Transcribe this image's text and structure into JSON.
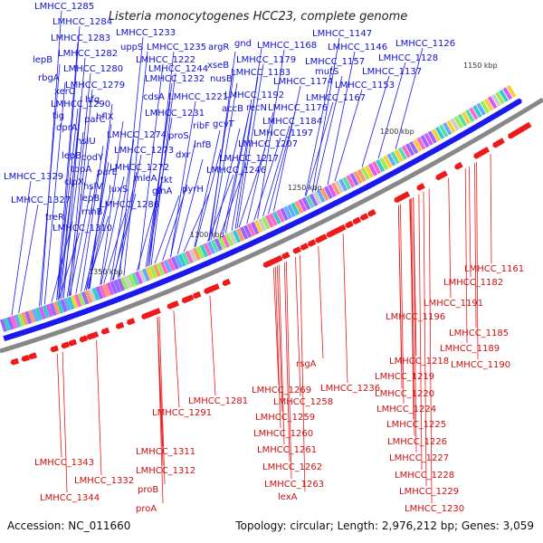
{
  "title": "Listeria monocytogenes HCC23, complete genome",
  "footer": {
    "accession": "Accession: NC_011660",
    "summary": "Topology: circular; Length: 2,976,212 bp; Genes: 3,059"
  },
  "ticks": [
    "1150 kbp",
    "1200 kbp",
    "1250 kbp",
    "1300 kbp",
    "1350 kbp"
  ],
  "colors": {
    "forward": "#1a1aee",
    "reverse": "#ee1a1a",
    "backbone": "#888888",
    "forward_label": "#1010cc",
    "reverse_label": "#cc1010"
  },
  "forward_labels": [
    "LMHCC_1285",
    "LMHCC_1284",
    "LMHCC_1283",
    "lepB",
    "rbgA",
    "xerC",
    "tig",
    "lepB",
    "clpX",
    "LMHCC_1329",
    "LMHCC_1327",
    "treR",
    "LMHCC_1310",
    "LMHCC_1282",
    "LMHCC_1280",
    "LMHCC_1279",
    "LMHCC_1290",
    "dprA",
    "hslU",
    "codY",
    "topA",
    "hslV",
    "parE",
    "lepB",
    "rnhB",
    "luxS",
    "LMHCC_1286",
    "hfq",
    "hflX",
    "parC",
    "LMHCC_1274",
    "LMHCC_1273",
    "LMHCC_1272",
    "mleA",
    "LMHCC_1233",
    "uppS",
    "LMHCC_1222",
    "LMHCC_1232",
    "cdsA",
    "LMHCC_1231",
    "proS",
    "LMHCC_1235",
    "LMHCC_1244",
    "LMHCC_1221",
    "infB",
    "dxr",
    "tkt",
    "glnA",
    "argR",
    "xseB",
    "nusB",
    "ribF",
    "gnd",
    "LMHCC_1168",
    "LMHCC_1179",
    "LMHCC_1183",
    "LMHCC_1192",
    "recN",
    "accB",
    "gcvT",
    "LMHCC_1207",
    "LMHCC_1217",
    "LMHCC_1246",
    "pyrH",
    "LMHCC_1174",
    "LMHCC_1176",
    "LMHCC_1184",
    "LMHCC_1197",
    "LMHCC_1147",
    "LMHCC_1146",
    "LMHCC_1157",
    "mutS",
    "LMHCC_1167",
    "LMHCC_1153",
    "LMHCC_1126",
    "LMHCC_1128",
    "LMHCC_1137"
  ],
  "reverse_labels": [
    "LMHCC_1161",
    "LMHCC_1182",
    "LMHCC_1191",
    "LMHCC_1196",
    "LMHCC_1185",
    "LMHCC_1189",
    "LMHCC_1190",
    "LMHCC_1218",
    "LMHCC_1219",
    "LMHCC_1220",
    "LMHCC_1224",
    "LMHCC_1225",
    "LMHCC_1226",
    "LMHCC_1227",
    "LMHCC_1228",
    "LMHCC_1229",
    "LMHCC_1230",
    "LMHCC_1236",
    "rsgA",
    "LMHCC_1269",
    "LMHCC_1258",
    "LMHCC_1259",
    "LMHCC_1260",
    "LMHCC_1261",
    "LMHCC_1262",
    "LMHCC_1263",
    "lexA",
    "LMHCC_1281",
    "LMHCC_1291",
    "LMHCC_1311",
    "LMHCC_1312",
    "proB",
    "proA",
    "LMHCC_1343",
    "LMHCC_1332",
    "LMHCC_1344"
  ]
}
